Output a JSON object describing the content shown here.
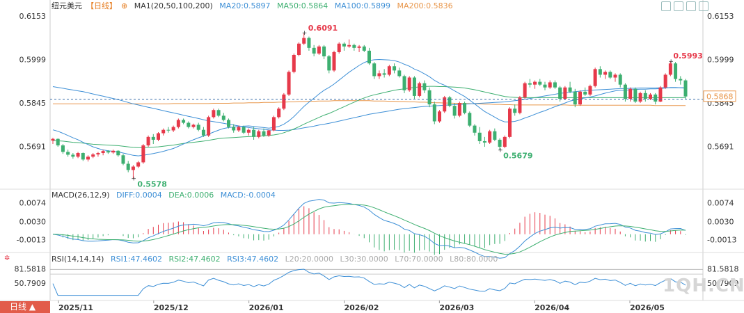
{
  "header": {
    "symbol": "纽元美元",
    "period": "【日线】",
    "ma_group": "MA1(20,50,100,200)",
    "ma20": "MA20:0.5897",
    "ma50": "MA50:0.5864",
    "ma100": "MA100:0.5899",
    "ma200": "MA200:0.5836"
  },
  "macd_header": {
    "title": "MACD(26,12,9)",
    "diff": "DIFF:0.0004",
    "dea": "DEA:0.0006",
    "macd": "MACD:-0.0004"
  },
  "rsi_header": {
    "title": "RSI(14,14,14)",
    "rsi1": "RSI1:47.4602",
    "rsi2": "RSI2:47.4602",
    "rsi3": "RSI3:47.4602",
    "l20": "L20:20.0000",
    "l30": "L30:30.0000",
    "l70": "L70:70.0000",
    "l80": "L80:80.0000"
  },
  "toolbar": {
    "period_tab": "日线",
    "watermark": "1QH.CN"
  },
  "chart_data": {
    "type": "candlestick",
    "price_ticks": [
      "0.6153",
      "0.5999",
      "0.5845",
      "0.5691"
    ],
    "current_price": "0.5868",
    "high_label": "0.6091",
    "low_label": "0.5578",
    "recent_high_label": "0.5993",
    "mid_low_label": "0.5679",
    "x_labels": [
      "2025/11",
      "2025/12",
      "2026/01",
      "2026/02",
      "2026/03",
      "2026/04",
      "2026/05"
    ],
    "macd_ticks": [
      "0.0074",
      "0.0030",
      "-0.0013"
    ],
    "rsi_ticks": [
      "81.5818",
      "50.7909"
    ],
    "colors": {
      "up": "#e6394a",
      "down": "#3daf70",
      "ma20": "#3d8fd6",
      "ma50": "#3daf70",
      "ma100": "#3d8fd6",
      "ma200": "#e8964a"
    },
    "candles": [
      [
        0.5712,
        0.5722,
        0.57,
        0.5718
      ],
      [
        0.5718,
        0.572,
        0.569,
        0.5695
      ],
      [
        0.5695,
        0.57,
        0.5665,
        0.5672
      ],
      [
        0.5672,
        0.568,
        0.5655,
        0.5662
      ],
      [
        0.5662,
        0.5668,
        0.5648,
        0.5655
      ],
      [
        0.5655,
        0.5672,
        0.565,
        0.5668
      ],
      [
        0.5668,
        0.567,
        0.564,
        0.5645
      ],
      [
        0.5645,
        0.566,
        0.5638,
        0.5655
      ],
      [
        0.5655,
        0.5668,
        0.565,
        0.5663
      ],
      [
        0.5663,
        0.5672,
        0.5655,
        0.5668
      ],
      [
        0.5668,
        0.568,
        0.566,
        0.5675
      ],
      [
        0.5675,
        0.5678,
        0.5665,
        0.567
      ],
      [
        0.567,
        0.568,
        0.5665,
        0.5676
      ],
      [
        0.5676,
        0.5678,
        0.5655,
        0.566
      ],
      [
        0.566,
        0.5665,
        0.5625,
        0.563
      ],
      [
        0.563,
        0.564,
        0.56,
        0.5608
      ],
      [
        0.5608,
        0.5625,
        0.5578,
        0.562
      ],
      [
        0.562,
        0.564,
        0.5615,
        0.5635
      ],
      [
        0.5635,
        0.57,
        0.563,
        0.5695
      ],
      [
        0.5695,
        0.573,
        0.569,
        0.5725
      ],
      [
        0.5725,
        0.5735,
        0.57,
        0.5715
      ],
      [
        0.5715,
        0.5742,
        0.571,
        0.5738
      ],
      [
        0.5738,
        0.5755,
        0.573,
        0.575
      ],
      [
        0.575,
        0.576,
        0.574,
        0.5748
      ],
      [
        0.5748,
        0.5765,
        0.5742,
        0.576
      ],
      [
        0.576,
        0.579,
        0.5755,
        0.5785
      ],
      [
        0.5785,
        0.579,
        0.577,
        0.5775
      ],
      [
        0.5775,
        0.578,
        0.5755,
        0.576
      ],
      [
        0.576,
        0.5772,
        0.5755,
        0.5768
      ],
      [
        0.5768,
        0.5775,
        0.5745,
        0.575
      ],
      [
        0.575,
        0.576,
        0.5725,
        0.573
      ],
      [
        0.573,
        0.58,
        0.5725,
        0.5795
      ],
      [
        0.5795,
        0.5825,
        0.579,
        0.582
      ],
      [
        0.582,
        0.5825,
        0.5795,
        0.58
      ],
      [
        0.58,
        0.581,
        0.578,
        0.5785
      ],
      [
        0.5785,
        0.579,
        0.5755,
        0.576
      ],
      [
        0.576,
        0.577,
        0.574,
        0.5748
      ],
      [
        0.5748,
        0.5765,
        0.5742,
        0.576
      ],
      [
        0.576,
        0.5765,
        0.5735,
        0.574
      ],
      [
        0.574,
        0.5755,
        0.573,
        0.575
      ],
      [
        0.575,
        0.576,
        0.5715,
        0.5725
      ],
      [
        0.5725,
        0.575,
        0.572,
        0.5745
      ],
      [
        0.5745,
        0.5755,
        0.5725,
        0.573
      ],
      [
        0.573,
        0.575,
        0.5725,
        0.5748
      ],
      [
        0.5748,
        0.58,
        0.5745,
        0.5795
      ],
      [
        0.5795,
        0.583,
        0.579,
        0.5825
      ],
      [
        0.5825,
        0.588,
        0.582,
        0.5875
      ],
      [
        0.5875,
        0.596,
        0.587,
        0.5955
      ],
      [
        0.5955,
        0.602,
        0.595,
        0.6015
      ],
      [
        0.6015,
        0.606,
        0.601,
        0.6055
      ],
      [
        0.6055,
        0.6091,
        0.605,
        0.6075
      ],
      [
        0.6075,
        0.608,
        0.603,
        0.604
      ],
      [
        0.604,
        0.605,
        0.601,
        0.602
      ],
      [
        0.602,
        0.605,
        0.6015,
        0.6045
      ],
      [
        0.6045,
        0.605,
        0.6,
        0.601
      ],
      [
        0.601,
        0.6015,
        0.595,
        0.596
      ],
      [
        0.596,
        0.603,
        0.5955,
        0.6025
      ],
      [
        0.6025,
        0.606,
        0.602,
        0.6055
      ],
      [
        0.6055,
        0.606,
        0.603,
        0.6045
      ],
      [
        0.6045,
        0.607,
        0.604,
        0.605
      ],
      [
        0.605,
        0.6055,
        0.603,
        0.604
      ],
      [
        0.604,
        0.605,
        0.6025,
        0.6045
      ],
      [
        0.6045,
        0.605,
        0.6025,
        0.603
      ],
      [
        0.603,
        0.604,
        0.598,
        0.5985
      ],
      [
        0.5985,
        0.599,
        0.593,
        0.594
      ],
      [
        0.594,
        0.596,
        0.593,
        0.595
      ],
      [
        0.595,
        0.5965,
        0.5935,
        0.5945
      ],
      [
        0.5945,
        0.598,
        0.594,
        0.5975
      ],
      [
        0.5975,
        0.5985,
        0.595,
        0.596
      ],
      [
        0.596,
        0.597,
        0.5935,
        0.594
      ],
      [
        0.594,
        0.5945,
        0.588,
        0.589
      ],
      [
        0.589,
        0.594,
        0.5885,
        0.5935
      ],
      [
        0.5935,
        0.594,
        0.586,
        0.587
      ],
      [
        0.587,
        0.592,
        0.5865,
        0.5915
      ],
      [
        0.5915,
        0.5925,
        0.588,
        0.589
      ],
      [
        0.589,
        0.59,
        0.583,
        0.584
      ],
      [
        0.584,
        0.585,
        0.577,
        0.578
      ],
      [
        0.578,
        0.582,
        0.5775,
        0.5815
      ],
      [
        0.5815,
        0.587,
        0.581,
        0.5865
      ],
      [
        0.5865,
        0.587,
        0.583,
        0.5835
      ],
      [
        0.5835,
        0.5845,
        0.579,
        0.58
      ],
      [
        0.58,
        0.585,
        0.5795,
        0.5845
      ],
      [
        0.5845,
        0.585,
        0.5805,
        0.581
      ],
      [
        0.581,
        0.5815,
        0.576,
        0.5765
      ],
      [
        0.5765,
        0.577,
        0.573,
        0.574
      ],
      [
        0.574,
        0.576,
        0.57,
        0.571
      ],
      [
        0.571,
        0.5725,
        0.569,
        0.5705
      ],
      [
        0.5705,
        0.575,
        0.57,
        0.5745
      ],
      [
        0.5745,
        0.5755,
        0.571,
        0.5715
      ],
      [
        0.5715,
        0.572,
        0.5679,
        0.569
      ],
      [
        0.569,
        0.573,
        0.5685,
        0.5725
      ],
      [
        0.5725,
        0.583,
        0.572,
        0.5825
      ],
      [
        0.5825,
        0.584,
        0.58,
        0.581
      ],
      [
        0.581,
        0.587,
        0.5805,
        0.5865
      ],
      [
        0.5865,
        0.592,
        0.586,
        0.5915
      ],
      [
        0.5915,
        0.593,
        0.59,
        0.591
      ],
      [
        0.591,
        0.5925,
        0.5895,
        0.592
      ],
      [
        0.592,
        0.593,
        0.5905,
        0.591
      ],
      [
        0.591,
        0.592,
        0.589,
        0.59
      ],
      [
        0.59,
        0.5925,
        0.5895,
        0.5918
      ],
      [
        0.5918,
        0.5925,
        0.5895,
        0.59
      ],
      [
        0.59,
        0.5905,
        0.585,
        0.586
      ],
      [
        0.586,
        0.5905,
        0.5855,
        0.59
      ],
      [
        0.59,
        0.592,
        0.588,
        0.5885
      ],
      [
        0.5885,
        0.5895,
        0.583,
        0.584
      ],
      [
        0.584,
        0.589,
        0.5835,
        0.5885
      ],
      [
        0.5885,
        0.59,
        0.587,
        0.5875
      ],
      [
        0.5875,
        0.591,
        0.587,
        0.5905
      ],
      [
        0.5905,
        0.597,
        0.59,
        0.5965
      ],
      [
        0.5965,
        0.5975,
        0.5935,
        0.5945
      ],
      [
        0.5945,
        0.596,
        0.593,
        0.5955
      ],
      [
        0.5955,
        0.596,
        0.593,
        0.5935
      ],
      [
        0.5935,
        0.595,
        0.592,
        0.5945
      ],
      [
        0.5945,
        0.595,
        0.59,
        0.591
      ],
      [
        0.591,
        0.5915,
        0.585,
        0.586
      ],
      [
        0.586,
        0.59,
        0.585,
        0.5895
      ],
      [
        0.5895,
        0.59,
        0.5845,
        0.585
      ],
      [
        0.585,
        0.5885,
        0.5845,
        0.588
      ],
      [
        0.588,
        0.589,
        0.585,
        0.586
      ],
      [
        0.586,
        0.588,
        0.5855,
        0.5875
      ],
      [
        0.5875,
        0.588,
        0.584,
        0.585
      ],
      [
        0.585,
        0.5905,
        0.5848,
        0.59
      ],
      [
        0.59,
        0.595,
        0.5895,
        0.5945
      ],
      [
        0.5945,
        0.5993,
        0.594,
        0.5985
      ],
      [
        0.5985,
        0.599,
        0.592,
        0.593
      ],
      [
        0.593,
        0.594,
        0.591,
        0.5925
      ],
      [
        0.5925,
        0.593,
        0.586,
        0.5868
      ]
    ],
    "ma20": [
      0.575,
      0.5745,
      0.5738,
      0.573,
      0.5722,
      0.5715,
      0.5706,
      0.5698,
      0.569,
      0.5684,
      0.5679,
      0.5676,
      0.5674,
      0.5672,
      0.5668,
      0.5664,
      0.566,
      0.5658,
      0.566,
      0.5663,
      0.5666,
      0.567,
      0.5674,
      0.5679,
      0.5684,
      0.5692,
      0.57,
      0.5708,
      0.5715,
      0.5722,
      0.5728,
      0.5735,
      0.5742,
      0.5749,
      0.5755,
      0.5758,
      0.576,
      0.5762,
      0.5763,
      0.5764,
      0.5762,
      0.576,
      0.5758,
      0.5756,
      0.5758,
      0.5762,
      0.577,
      0.5782,
      0.5797,
      0.5815,
      0.5833,
      0.5848,
      0.5862,
      0.5877,
      0.589,
      0.59,
      0.5912,
      0.5926,
      0.594,
      0.5954,
      0.5966,
      0.5978,
      0.5988,
      0.5995,
      0.5998,
      0.5999,
      0.5998,
      0.5997,
      0.5995,
      0.599,
      0.5982,
      0.5975,
      0.5965,
      0.5958,
      0.5948,
      0.5938,
      0.5925,
      0.5915,
      0.5908,
      0.5898,
      0.5888,
      0.5878,
      0.5868,
      0.5855,
      0.5842,
      0.5828,
      0.5815,
      0.5805,
      0.5795,
      0.5785,
      0.5778,
      0.5778,
      0.578,
      0.5785,
      0.5792,
      0.5798,
      0.5805,
      0.5812,
      0.5818,
      0.5825,
      0.5832,
      0.5838,
      0.5845,
      0.5852,
      0.5856,
      0.586,
      0.5863,
      0.5866,
      0.587,
      0.5875,
      0.588,
      0.5884,
      0.5888,
      0.589,
      0.589,
      0.5892,
      0.5893,
      0.5894,
      0.5894,
      0.5895,
      0.5895,
      0.5896,
      0.5898,
      0.59,
      0.59,
      0.5899,
      0.5897
    ],
    "ma50": [
      0.5712,
      0.5711,
      0.571,
      0.5708,
      0.5706,
      0.5705,
      0.5703,
      0.5701,
      0.5699,
      0.5698,
      0.5697,
      0.5696,
      0.5695,
      0.5694,
      0.5692,
      0.569,
      0.5688,
      0.5687,
      0.5687,
      0.5688,
      0.5689,
      0.569,
      0.5692,
      0.5694,
      0.5696,
      0.5699,
      0.5702,
      0.5704,
      0.5706,
      0.5708,
      0.571,
      0.5713,
      0.5716,
      0.5719,
      0.5721,
      0.5722,
      0.5723,
      0.5724,
      0.5725,
      0.5726,
      0.5727,
      0.5728,
      0.5729,
      0.573,
      0.5732,
      0.5735,
      0.574,
      0.5746,
      0.5753,
      0.5761,
      0.577,
      0.5778,
      0.5786,
      0.5794,
      0.5802,
      0.5808,
      0.5816,
      0.5824,
      0.5832,
      0.584,
      0.5848,
      0.5856,
      0.5863,
      0.5869,
      0.5874,
      0.5878,
      0.5882,
      0.5886,
      0.589,
      0.5893,
      0.5895,
      0.5898,
      0.59,
      0.5902,
      0.5903,
      0.5904,
      0.5904,
      0.5903,
      0.5903,
      0.5902,
      0.5901,
      0.59,
      0.5898,
      0.5895,
      0.5892,
      0.5888,
      0.5884,
      0.588,
      0.5876,
      0.5872,
      0.5868,
      0.5866,
      0.5865,
      0.5864,
      0.5864,
      0.5864,
      0.5864,
      0.5864,
      0.5864,
      0.5864,
      0.5864,
      0.5864,
      0.5864,
      0.5864,
      0.5864,
      0.5864,
      0.5864,
      0.5864,
      0.5864,
      0.5864,
      0.5864,
      0.5864,
      0.5864,
      0.5864,
      0.5864,
      0.5864,
      0.5864,
      0.5864,
      0.5864,
      0.5864,
      0.5864,
      0.5864,
      0.5864,
      0.5864,
      0.5864,
      0.5864,
      0.5864
    ],
    "ma100": [
      0.5903,
      0.59,
      0.5897,
      0.5894,
      0.5891,
      0.5888,
      0.5885,
      0.5881,
      0.5877,
      0.5873,
      0.5869,
      0.5865,
      0.5861,
      0.5857,
      0.5852,
      0.5847,
      0.5842,
      0.5838,
      0.5834,
      0.583,
      0.5826,
      0.5822,
      0.5818,
      0.5814,
      0.581,
      0.5806,
      0.5802,
      0.5798,
      0.5794,
      0.579,
      0.5786,
      0.5782,
      0.5779,
      0.5776,
      0.5773,
      0.577,
      0.5767,
      0.5764,
      0.5761,
      0.5758,
      0.5756,
      0.5754,
      0.5752,
      0.575,
      0.5749,
      0.5748,
      0.5748,
      0.5749,
      0.5751,
      0.5754,
      0.5757,
      0.576,
      0.5763,
      0.5767,
      0.577,
      0.5773,
      0.5777,
      0.5781,
      0.5785,
      0.5789,
      0.5793,
      0.5797,
      0.5801,
      0.5805,
      0.5808,
      0.5811,
      0.5814,
      0.5817,
      0.582,
      0.5823,
      0.5825,
      0.5827,
      0.5829,
      0.5831,
      0.5833,
      0.5834,
      0.5835,
      0.5836,
      0.5837,
      0.5838,
      0.5839,
      0.584,
      0.5841,
      0.5842,
      0.5843,
      0.5844,
      0.5845,
      0.5846,
      0.5847,
      0.5848,
      0.5849,
      0.5851,
      0.5853,
      0.5855,
      0.5858,
      0.5861,
      0.5864,
      0.5867,
      0.587,
      0.5873,
      0.5876,
      0.5879,
      0.5881,
      0.5883,
      0.5885,
      0.5887,
      0.5889,
      0.589,
      0.5891,
      0.5892,
      0.5893,
      0.5894,
      0.5895,
      0.5896,
      0.5896,
      0.5897,
      0.5897,
      0.5898,
      0.5898,
      0.5898,
      0.5898,
      0.5899,
      0.5899,
      0.5899,
      0.5899,
      0.5899,
      0.5899
    ],
    "ma200": [
      0.5842,
      0.5842,
      0.5842,
      0.5842,
      0.5842,
      0.5842,
      0.5842,
      0.5842,
      0.5842,
      0.5842,
      0.5842,
      0.5842,
      0.5842,
      0.5842,
      0.5842,
      0.5842,
      0.5842,
      0.5842,
      0.5842,
      0.5842,
      0.5842,
      0.5842,
      0.5842,
      0.5842,
      0.5843,
      0.5843,
      0.5843,
      0.5843,
      0.5843,
      0.5843,
      0.5843,
      0.5843,
      0.5844,
      0.5844,
      0.5844,
      0.5844,
      0.5845,
      0.5845,
      0.5845,
      0.5846,
      0.5846,
      0.5846,
      0.5847,
      0.5847,
      0.5847,
      0.5848,
      0.5848,
      0.5849,
      0.5849,
      0.585,
      0.585,
      0.5851,
      0.5851,
      0.5852,
      0.5852,
      0.5852,
      0.5853,
      0.5853,
      0.5853,
      0.5853,
      0.5853,
      0.5853,
      0.5853,
      0.5853,
      0.5852,
      0.5852,
      0.5852,
      0.5851,
      0.5851,
      0.585,
      0.585,
      0.5849,
      0.5849,
      0.5848,
      0.5848,
      0.5847,
      0.5846,
      0.5846,
      0.5845,
      0.5845,
      0.5844,
      0.5844,
      0.5843,
      0.5843,
      0.5842,
      0.5842,
      0.5841,
      0.5841,
      0.584,
      0.584,
      0.5839,
      0.5839,
      0.5838,
      0.5838,
      0.5838,
      0.5838,
      0.5838,
      0.5838,
      0.5838,
      0.5838,
      0.5838,
      0.5838,
      0.5838,
      0.5837,
      0.5837,
      0.5837,
      0.5837,
      0.5837,
      0.5837,
      0.5837,
      0.5837,
      0.5837,
      0.5837,
      0.5837,
      0.5837,
      0.5837,
      0.5837,
      0.5837,
      0.5837,
      0.5837,
      0.5836,
      0.5836,
      0.5836,
      0.5836,
      0.5836,
      0.5836,
      0.5836
    ]
  }
}
